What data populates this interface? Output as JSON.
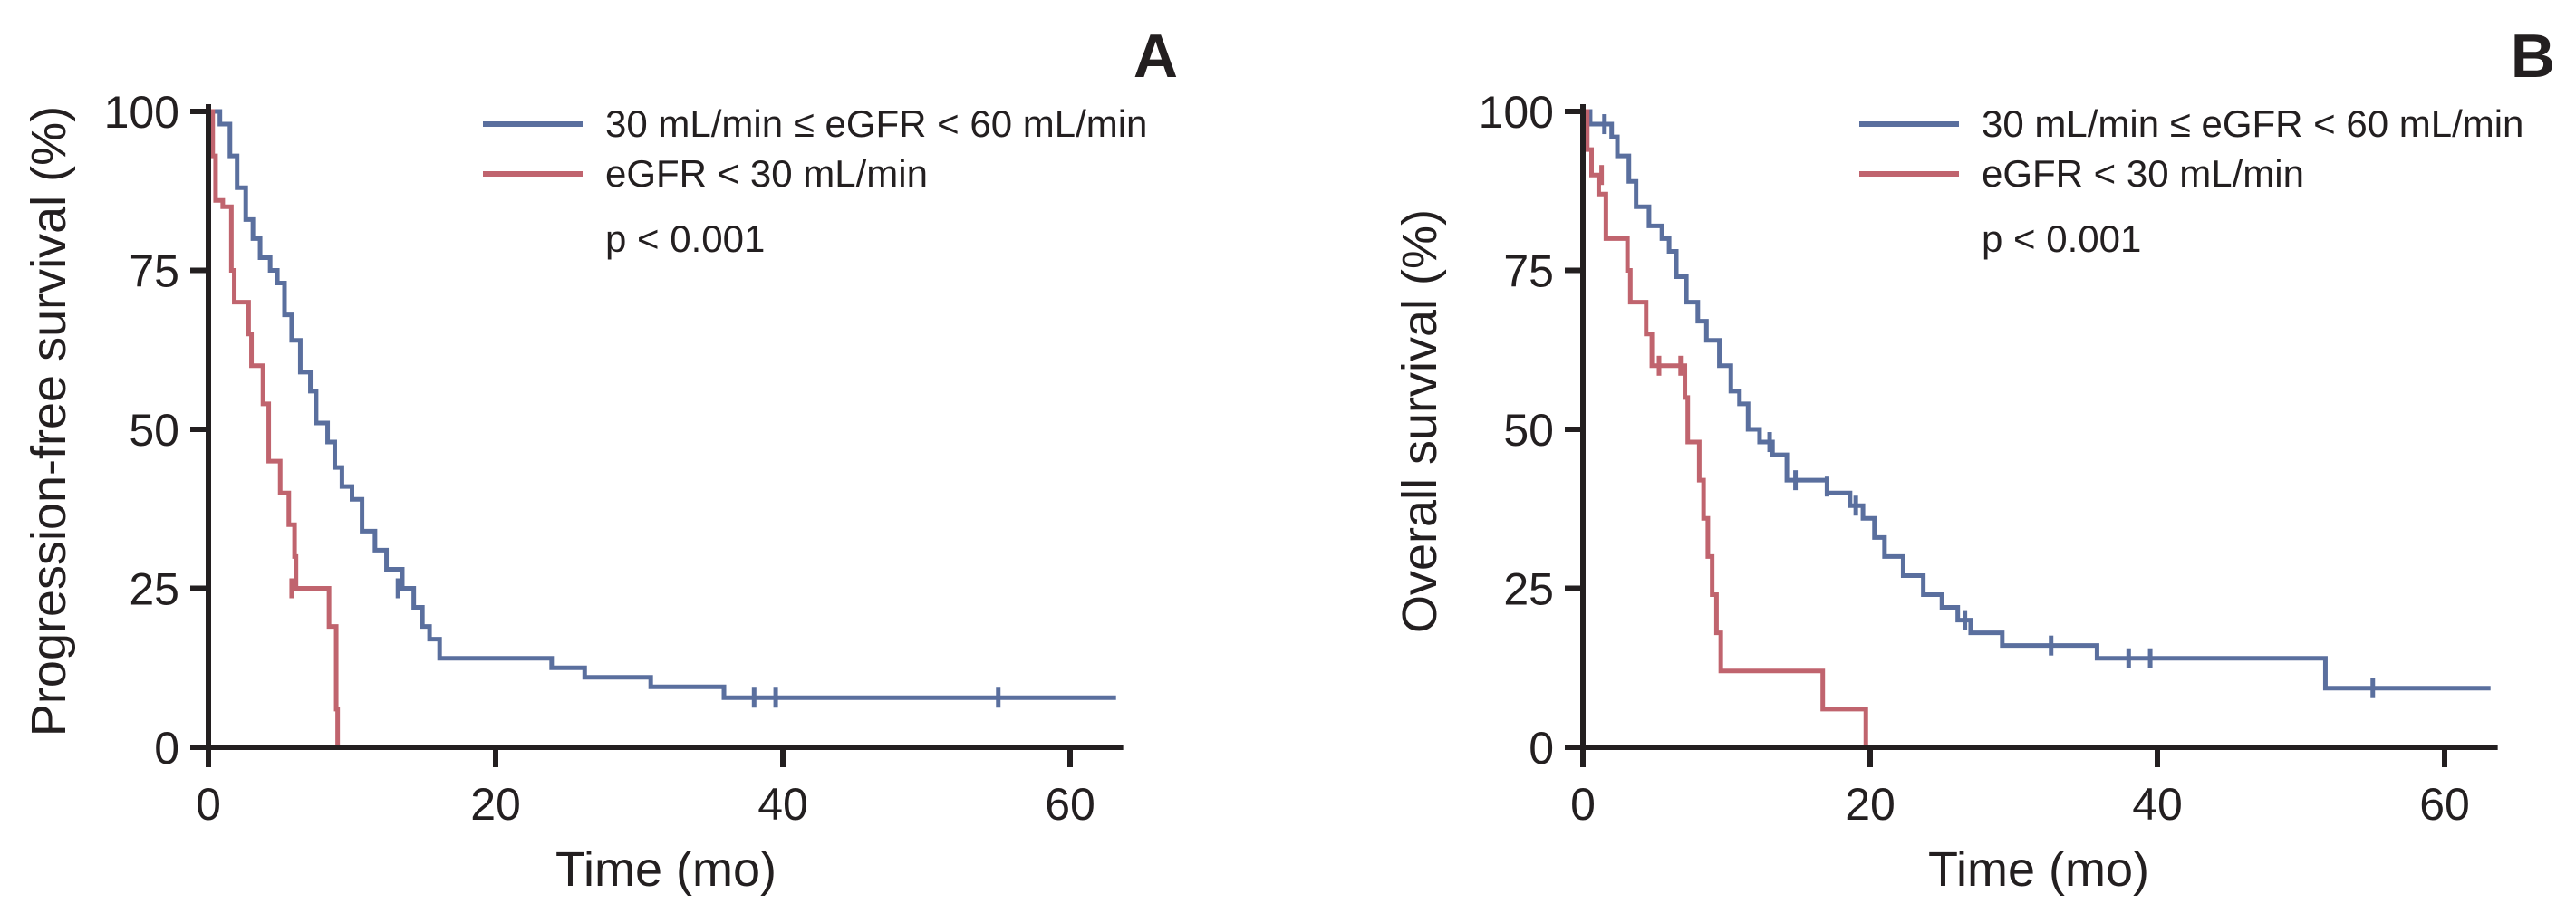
{
  "colors": {
    "series_1": "#5a6f9e",
    "series_2": "#c0646e",
    "axis": "#231f20"
  },
  "chart_data": [
    {
      "type": "line",
      "subtype": "kaplan-meier step",
      "panel_label": "A",
      "title": "",
      "xlabel": "Time (mo)",
      "ylabel": "Progression-free survival (%)",
      "xlim": [
        0,
        63.7
      ],
      "ylim": [
        0,
        100
      ],
      "xticks": [
        0,
        20,
        40,
        60
      ],
      "yticks": [
        0,
        25,
        50,
        75,
        100
      ],
      "grid": false,
      "legend_position": "top-right",
      "annotation": "p < 0.001",
      "series": [
        {
          "name": "30 mL/min ≤ eGFR < 60 mL/min",
          "color_key": "series_1",
          "steps": [
            [
              0,
              100
            ],
            [
              0.8,
              98
            ],
            [
              1.5,
              93
            ],
            [
              2.0,
              88
            ],
            [
              2.6,
              83
            ],
            [
              3.1,
              80
            ],
            [
              3.6,
              77
            ],
            [
              4.3,
              75
            ],
            [
              4.8,
              73
            ],
            [
              5.3,
              68
            ],
            [
              5.8,
              64
            ],
            [
              6.4,
              59
            ],
            [
              7.1,
              56
            ],
            [
              7.5,
              51
            ],
            [
              8.3,
              48
            ],
            [
              8.8,
              44
            ],
            [
              9.3,
              41
            ],
            [
              10.0,
              39
            ],
            [
              10.7,
              34
            ],
            [
              11.6,
              31
            ],
            [
              12.4,
              28
            ],
            [
              13.5,
              25
            ],
            [
              14.3,
              22
            ],
            [
              14.9,
              19
            ],
            [
              15.4,
              17
            ],
            [
              16.1,
              14
            ],
            [
              23.9,
              12.5
            ],
            [
              26.2,
              11
            ],
            [
              30.8,
              9.5
            ],
            [
              35.9,
              7.8
            ]
          ],
          "end_time": 63.2,
          "censored": [
            [
              13.2,
              25
            ],
            [
              38.0,
              7.8
            ],
            [
              39.5,
              7.8
            ],
            [
              55.0,
              7.8
            ]
          ]
        },
        {
          "name": "eGFR < 30 mL/min",
          "color_key": "series_2",
          "steps": [
            [
              0,
              100
            ],
            [
              0.3,
              93
            ],
            [
              0.5,
              86
            ],
            [
              1.0,
              85
            ],
            [
              1.6,
              75
            ],
            [
              1.8,
              70
            ],
            [
              2.8,
              65
            ],
            [
              3.0,
              60
            ],
            [
              3.8,
              54
            ],
            [
              4.2,
              45
            ],
            [
              5.0,
              40
            ],
            [
              5.6,
              35
            ],
            [
              6.0,
              30
            ],
            [
              6.1,
              25
            ],
            [
              8.4,
              19
            ],
            [
              8.9,
              6
            ],
            [
              9.0,
              0
            ]
          ],
          "end_time": 9.0,
          "censored": [
            [
              5.8,
              25
            ]
          ]
        }
      ]
    },
    {
      "type": "line",
      "subtype": "kaplan-meier step",
      "panel_label": "B",
      "title": "",
      "xlabel": "Time (mo)",
      "ylabel": "Overall survival (%)",
      "xlim": [
        0,
        63.7
      ],
      "ylim": [
        0,
        100
      ],
      "xticks": [
        0,
        20,
        40,
        60
      ],
      "yticks": [
        0,
        25,
        50,
        75,
        100
      ],
      "grid": false,
      "legend_position": "top-right",
      "annotation": "p < 0.001",
      "series": [
        {
          "name": "30 mL/min ≤ eGFR < 60 mL/min",
          "color_key": "series_1",
          "steps": [
            [
              0,
              100
            ],
            [
              0.5,
              98
            ],
            [
              2.0,
              96
            ],
            [
              2.4,
              93
            ],
            [
              3.2,
              89
            ],
            [
              3.7,
              85
            ],
            [
              4.6,
              82
            ],
            [
              5.5,
              80
            ],
            [
              6.0,
              78
            ],
            [
              6.5,
              74
            ],
            [
              7.2,
              70
            ],
            [
              8.0,
              67
            ],
            [
              8.6,
              64
            ],
            [
              9.5,
              60
            ],
            [
              10.3,
              56
            ],
            [
              10.9,
              54
            ],
            [
              11.5,
              50
            ],
            [
              12.3,
              48
            ],
            [
              13.2,
              46
            ],
            [
              14.2,
              42
            ],
            [
              17.0,
              40
            ],
            [
              18.6,
              38
            ],
            [
              19.5,
              36
            ],
            [
              20.3,
              33
            ],
            [
              21.0,
              30
            ],
            [
              22.3,
              27
            ],
            [
              23.7,
              24
            ],
            [
              25.0,
              22
            ],
            [
              26.1,
              20
            ],
            [
              27.0,
              18
            ],
            [
              29.2,
              16
            ],
            [
              35.8,
              14
            ],
            [
              51.7,
              9.3
            ]
          ],
          "end_time": 63.2,
          "censored": [
            [
              1.5,
              98
            ],
            [
              13.0,
              48
            ],
            [
              14.8,
              42
            ],
            [
              17.0,
              41
            ],
            [
              19.0,
              38
            ],
            [
              26.6,
              20
            ],
            [
              32.6,
              16
            ],
            [
              38.0,
              14
            ],
            [
              39.5,
              14
            ],
            [
              55.0,
              9.3
            ]
          ]
        },
        {
          "name": "eGFR < 30 mL/min",
          "color_key": "series_2",
          "steps": [
            [
              0,
              100
            ],
            [
              0.3,
              94
            ],
            [
              0.6,
              90
            ],
            [
              1.1,
              87
            ],
            [
              1.6,
              80
            ],
            [
              3.1,
              75
            ],
            [
              3.3,
              70
            ],
            [
              4.4,
              65
            ],
            [
              4.8,
              60
            ],
            [
              7.1,
              55
            ],
            [
              7.3,
              48
            ],
            [
              8.1,
              42
            ],
            [
              8.4,
              36
            ],
            [
              8.7,
              30
            ],
            [
              9.0,
              24
            ],
            [
              9.3,
              18
            ],
            [
              9.6,
              12
            ],
            [
              16.7,
              6
            ],
            [
              19.7,
              0
            ]
          ],
          "end_time": 19.7,
          "censored": [
            [
              1.3,
              90
            ],
            [
              5.3,
              60
            ],
            [
              6.8,
              60
            ]
          ]
        }
      ]
    }
  ]
}
